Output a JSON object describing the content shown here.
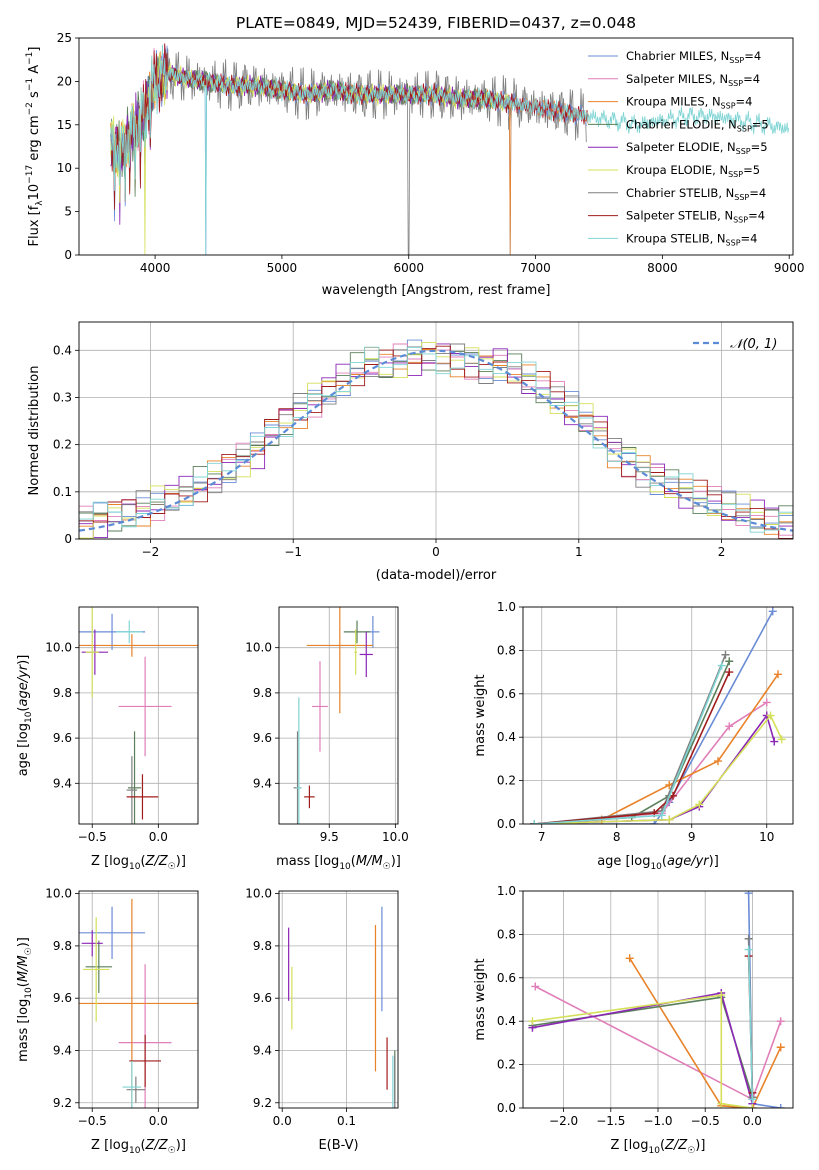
{
  "chart_data": [
    {
      "id": "spectrum",
      "type": "line",
      "title": "PLATE=0849, MJD=52439, FIBERID=0437, z=0.048",
      "xlabel": "wavelength [Angstrom, rest frame]",
      "ylabel": "Flux [f_λ10^-17 erg cm^-2 s^-1 A^-1]",
      "xlim": [
        3400,
        9030
      ],
      "ylim": [
        0,
        25
      ],
      "xticks": [
        4000,
        5000,
        6000,
        7000,
        8000,
        9000
      ],
      "yticks": [
        0,
        5,
        10,
        15,
        20,
        25
      ],
      "grid": false,
      "legend_position": "top-right",
      "continuum": [
        [
          3650,
          13
        ],
        [
          3700,
          12
        ],
        [
          3750,
          12.5
        ],
        [
          3800,
          14
        ],
        [
          3850,
          15
        ],
        [
          3900,
          16
        ],
        [
          3950,
          18
        ],
        [
          4000,
          20
        ],
        [
          4100,
          21
        ],
        [
          4200,
          20.5
        ],
        [
          4400,
          20
        ],
        [
          4600,
          19.5
        ],
        [
          4800,
          19.5
        ],
        [
          5000,
          19
        ],
        [
          5200,
          18.5
        ],
        [
          5400,
          19
        ],
        [
          5600,
          18.5
        ],
        [
          5800,
          18.5
        ],
        [
          6000,
          18.5
        ],
        [
          6200,
          18.5
        ],
        [
          6400,
          18
        ],
        [
          6600,
          18
        ],
        [
          6800,
          17.5
        ],
        [
          7000,
          17
        ],
        [
          7200,
          16.5
        ],
        [
          7400,
          16
        ],
        [
          7600,
          15.5
        ],
        [
          7800,
          15
        ],
        [
          8000,
          15.5
        ],
        [
          8200,
          16
        ],
        [
          8400,
          16
        ],
        [
          8600,
          15.5
        ],
        [
          8800,
          15
        ],
        [
          9000,
          14.5
        ]
      ],
      "series": [
        {
          "name": "Chabrier MILES, N_SSP=4",
          "color": "#6b8cd6",
          "xmax": 7400,
          "dips": [
            4400,
            6800
          ]
        },
        {
          "name": "Salpeter MILES, N_SSP=4",
          "color": "#e07fb9",
          "xmax": 7400,
          "dips": []
        },
        {
          "name": "Kroupa MILES, N_SSP=4",
          "color": "#e8832a",
          "xmax": 7420,
          "dips": [
            6800,
            7430
          ]
        },
        {
          "name": "Chabrier ELODIE, N_SSP=5",
          "color": "#5a7f5a",
          "xmax": 6800,
          "dips": []
        },
        {
          "name": "Salpeter ELODIE, N_SSP=5",
          "color": "#8b26b5",
          "xmax": 6800,
          "dips": []
        },
        {
          "name": "Kroupa ELODIE, N_SSP=5",
          "color": "#d4e05a",
          "xmax": 6800,
          "dips": [
            3920
          ]
        },
        {
          "name": "Chabrier STELIB, N_SSP=4",
          "color": "#7f7f7f",
          "xmax": 7400,
          "dips": [
            6000
          ]
        },
        {
          "name": "Salpeter STELIB, N_SSP=4",
          "color": "#a01c1c",
          "xmax": 7420,
          "dips": []
        },
        {
          "name": "Kroupa STELIB, N_SSP=4",
          "color": "#7fd4d4",
          "xmax": 9000,
          "dips": [
            4400
          ]
        }
      ]
    },
    {
      "id": "residuals",
      "type": "line",
      "xlabel": "(data-model)/error",
      "ylabel": "Normed distribution",
      "xlim": [
        -2.5,
        2.5
      ],
      "ylim": [
        0,
        0.46
      ],
      "xticks": [
        -2,
        -1,
        0,
        1,
        2
      ],
      "yticks": [
        0.0,
        0.1,
        0.2,
        0.3,
        0.4
      ],
      "grid": true,
      "legend_position": "top-right",
      "reference": {
        "name": "𝒩(0, 1)",
        "color": "#5b8bd6"
      },
      "bins": {
        "start": -2.5,
        "width": 0.1,
        "count": 50
      },
      "colors": [
        "#6b8cd6",
        "#e07fb9",
        "#e8832a",
        "#5a7f5a",
        "#8b26b5",
        "#d4e05a",
        "#7f7f7f",
        "#a01c1c",
        "#7fd4d4"
      ]
    },
    {
      "id": "z-age",
      "type": "scatter",
      "xlabel": "Z [log10(Z/Z☉)]",
      "ylabel": "age  [log10(age/yr)]",
      "xlim": [
        -0.6,
        0.3
      ],
      "ylim": [
        9.22,
        10.18
      ],
      "xticks": [
        -0.5,
        0.0
      ],
      "xticklabels": [
        "−0.5",
        "0.0"
      ],
      "yticks": [
        9.4,
        9.6,
        9.8,
        10.0
      ],
      "yticklabels": [
        "9.4",
        "9.6",
        "9.8",
        "10.0"
      ],
      "grid": true,
      "points": [
        {
          "x": -0.35,
          "y": 10.07,
          "xerr": 0.25,
          "yerr": 0.08,
          "color": "#6b8cd6"
        },
        {
          "x": -0.1,
          "y": 9.74,
          "xerr": 0.2,
          "yerr": 0.22,
          "color": "#e07fb9"
        },
        {
          "x": -0.2,
          "y": 10.01,
          "xerr": 0.5,
          "yerr": 0.05,
          "color": "#e8832a"
        },
        {
          "x": -0.18,
          "y": 9.38,
          "xerr": 0.05,
          "yerr": 0.25,
          "color": "#5a7f5a"
        },
        {
          "x": -0.48,
          "y": 9.98,
          "xerr": 0.1,
          "yerr": 0.1,
          "color": "#8b26b5"
        },
        {
          "x": -0.5,
          "y": 9.98,
          "xerr": 0.05,
          "yerr": 0.2,
          "color": "#d4e05a"
        },
        {
          "x": -0.2,
          "y": 9.37,
          "xerr": 0.04,
          "yerr": 0.15,
          "color": "#7f7f7f"
        },
        {
          "x": -0.12,
          "y": 9.34,
          "xerr": 0.12,
          "yerr": 0.1,
          "color": "#a01c1c"
        },
        {
          "x": -0.22,
          "y": 10.07,
          "xerr": 0.1,
          "yerr": 0.05,
          "color": "#7fd4d4"
        }
      ]
    },
    {
      "id": "mass-age",
      "type": "scatter",
      "xlabel": "mass [log10(M/M☉)]",
      "ylabel": "",
      "xlim": [
        9.12,
        10.02
      ],
      "ylim": [
        9.22,
        10.18
      ],
      "xticks": [
        9.5,
        10.0
      ],
      "xticklabels": [
        "9.5",
        "10.0"
      ],
      "yticks": [
        9.4,
        9.6,
        9.8,
        10.0
      ],
      "yticklabels": [
        "9.4",
        "9.6",
        "9.8",
        "10.0"
      ],
      "grid": true,
      "points": [
        {
          "x": 9.83,
          "y": 10.07,
          "xerr": 0.05,
          "yerr": 0.07,
          "color": "#6b8cd6"
        },
        {
          "x": 9.43,
          "y": 9.74,
          "xerr": 0.06,
          "yerr": 0.2,
          "color": "#e07fb9"
        },
        {
          "x": 9.58,
          "y": 10.01,
          "xerr": 0.25,
          "yerr": 0.3,
          "color": "#e8832a"
        },
        {
          "x": 9.71,
          "y": 10.07,
          "xerr": 0.1,
          "yerr": 0.05,
          "color": "#5a7f5a"
        },
        {
          "x": 9.78,
          "y": 9.97,
          "xerr": 0.05,
          "yerr": 0.1,
          "color": "#8b26b5"
        },
        {
          "x": 9.7,
          "y": 9.98,
          "xerr": 0.01,
          "yerr": 0.1,
          "color": "#d4e05a"
        },
        {
          "x": 9.26,
          "y": 9.38,
          "xerr": 0.03,
          "yerr": 0.25,
          "color": "#7f7f7f"
        },
        {
          "x": 9.35,
          "y": 9.34,
          "xerr": 0.04,
          "yerr": 0.05,
          "color": "#a01c1c"
        },
        {
          "x": 9.27,
          "y": 9.38,
          "xerr": 0.02,
          "yerr": 0.4,
          "color": "#7fd4d4"
        }
      ]
    },
    {
      "id": "age-weight",
      "type": "line",
      "xlabel": "age  [log10(age/yr)]",
      "ylabel": "mass weight",
      "xlim": [
        6.75,
        10.35
      ],
      "ylim": [
        0,
        1.0
      ],
      "xticks": [
        7,
        8,
        9,
        10
      ],
      "xticklabels": [
        "7",
        "8",
        "9",
        "10"
      ],
      "yticks": [
        0,
        0.2,
        0.4,
        0.6,
        0.8,
        1.0
      ],
      "yticklabels": [
        "0.0",
        "0.2",
        "0.4",
        "0.6",
        "0.8",
        "1.0"
      ],
      "grid": true,
      "series": [
        {
          "color": "#6b8cd6",
          "points": [
            [
              6.9,
              0.0
            ],
            [
              8.5,
              0.0
            ],
            [
              8.7,
              0.1
            ],
            [
              10.08,
              0.98
            ]
          ]
        },
        {
          "color": "#e07fb9",
          "points": [
            [
              6.9,
              0.0
            ],
            [
              8.6,
              0.05
            ],
            [
              9.5,
              0.45
            ],
            [
              10.0,
              0.56
            ]
          ]
        },
        {
          "color": "#e8832a",
          "points": [
            [
              6.9,
              0.0
            ],
            [
              7.8,
              0.02
            ],
            [
              8.7,
              0.18
            ],
            [
              9.35,
              0.29
            ],
            [
              10.15,
              0.69
            ]
          ]
        },
        {
          "color": "#5a7f5a",
          "points": [
            [
              6.9,
              0.0
            ],
            [
              8.2,
              0.03
            ],
            [
              8.7,
              0.13
            ],
            [
              9.5,
              0.75
            ]
          ]
        },
        {
          "color": "#8b26b5",
          "points": [
            [
              6.9,
              0.0
            ],
            [
              8.7,
              0.02
            ],
            [
              9.1,
              0.08
            ],
            [
              10.0,
              0.5
            ],
            [
              10.1,
              0.38
            ]
          ]
        },
        {
          "color": "#d4e05a",
          "points": [
            [
              6.9,
              0.0
            ],
            [
              8.7,
              0.02
            ],
            [
              9.1,
              0.09
            ],
            [
              10.05,
              0.5
            ],
            [
              10.2,
              0.39
            ]
          ]
        },
        {
          "color": "#7f7f7f",
          "points": [
            [
              6.9,
              0.0
            ],
            [
              8.6,
              0.06
            ],
            [
              9.45,
              0.78
            ]
          ]
        },
        {
          "color": "#a01c1c",
          "points": [
            [
              6.9,
              0.0
            ],
            [
              8.5,
              0.05
            ],
            [
              8.75,
              0.13
            ],
            [
              9.5,
              0.7
            ]
          ]
        },
        {
          "color": "#7fd4d4",
          "points": [
            [
              6.9,
              0.0
            ],
            [
              8.6,
              0.04
            ],
            [
              9.4,
              0.73
            ]
          ]
        }
      ]
    },
    {
      "id": "z-mass",
      "type": "scatter",
      "xlabel": "Z [log10(Z/Z☉)]",
      "ylabel": "mass [log10(M/M☉)]",
      "xlim": [
        -0.6,
        0.3
      ],
      "ylim": [
        9.18,
        10.01
      ],
      "xticks": [
        -0.5,
        0.0
      ],
      "xticklabels": [
        "−0.5",
        "0.0"
      ],
      "yticks": [
        9.2,
        9.4,
        9.6,
        9.8,
        10.0
      ],
      "yticklabels": [
        "9.2",
        "9.4",
        "9.6",
        "9.8",
        "10.0"
      ],
      "grid": true,
      "points": [
        {
          "x": -0.35,
          "y": 9.85,
          "xerr": 0.25,
          "yerr": 0.1,
          "color": "#6b8cd6"
        },
        {
          "x": -0.1,
          "y": 9.43,
          "xerr": 0.2,
          "yerr": 0.3,
          "color": "#e07fb9"
        },
        {
          "x": -0.2,
          "y": 9.58,
          "xerr": 0.5,
          "yerr": 0.4,
          "color": "#e8832a"
        },
        {
          "x": -0.45,
          "y": 9.72,
          "xerr": 0.1,
          "yerr": 0.1,
          "color": "#5a7f5a"
        },
        {
          "x": -0.5,
          "y": 9.81,
          "xerr": 0.08,
          "yerr": 0.05,
          "color": "#8b26b5"
        },
        {
          "x": -0.47,
          "y": 9.71,
          "xerr": 0.1,
          "yerr": 0.2,
          "color": "#d4e05a"
        },
        {
          "x": -0.17,
          "y": 9.25,
          "xerr": 0.07,
          "yerr": 0.05,
          "color": "#7f7f7f"
        },
        {
          "x": -0.1,
          "y": 9.36,
          "xerr": 0.12,
          "yerr": 0.1,
          "color": "#a01c1c"
        },
        {
          "x": -0.2,
          "y": 9.26,
          "xerr": 0.07,
          "yerr": 0.1,
          "color": "#7fd4d4"
        }
      ]
    },
    {
      "id": "ebv-mass",
      "type": "scatter",
      "xlabel": "E(B-V)",
      "ylabel": "",
      "xlim": [
        -0.005,
        0.18
      ],
      "ylim": [
        9.18,
        10.01
      ],
      "xticks": [
        0.0,
        0.1
      ],
      "xticklabels": [
        "0.0",
        "0.1"
      ],
      "yticks": [
        9.2,
        9.4,
        9.6,
        9.8,
        10.0
      ],
      "yticklabels": [
        "9.2",
        "9.4",
        "9.6",
        "9.8",
        "10.0"
      ],
      "grid": true,
      "points": [
        {
          "x": 0.155,
          "y": 9.75,
          "xerr": 0,
          "yerr": 0.2,
          "color": "#6b8cd6"
        },
        {
          "x": 0.175,
          "y": 9.28,
          "xerr": 0,
          "yerr": 0.1,
          "color": "#e07fb9"
        },
        {
          "x": 0.145,
          "y": 9.6,
          "xerr": 0,
          "yerr": 0.28,
          "color": "#e8832a"
        },
        {
          "x": 0.175,
          "y": 9.3,
          "xerr": 0,
          "yerr": 0.1,
          "color": "#5a7f5a"
        },
        {
          "x": 0.01,
          "y": 9.73,
          "xerr": 0,
          "yerr": 0.14,
          "color": "#8b26b5"
        },
        {
          "x": 0.015,
          "y": 9.6,
          "xerr": 0,
          "yerr": 0.12,
          "color": "#d4e05a"
        },
        {
          "x": 0.175,
          "y": 9.28,
          "xerr": 0,
          "yerr": 0.1,
          "color": "#7f7f7f"
        },
        {
          "x": 0.163,
          "y": 9.35,
          "xerr": 0,
          "yerr": 0.1,
          "color": "#a01c1c"
        },
        {
          "x": 0.172,
          "y": 9.28,
          "xerr": 0,
          "yerr": 0.1,
          "color": "#7fd4d4"
        }
      ]
    },
    {
      "id": "z-weight",
      "type": "line",
      "xlabel": "Z [log10(Z/Z☉)]",
      "ylabel": "mass weight",
      "xlim": [
        -2.43,
        0.43
      ],
      "ylim": [
        0,
        1.0
      ],
      "xticks": [
        -2.0,
        -1.5,
        -1.0,
        -0.5,
        0.0
      ],
      "xticklabels": [
        "−2.0",
        "−1.5",
        "−1.0",
        "−0.5",
        "0.0"
      ],
      "yticks": [
        0,
        0.2,
        0.4,
        0.6,
        0.8,
        1.0
      ],
      "yticklabels": [
        "0.0",
        "0.2",
        "0.4",
        "0.6",
        "0.8",
        "1.0"
      ],
      "grid": true,
      "series": [
        {
          "color": "#6b8cd6",
          "points": [
            [
              -0.04,
              0.99
            ],
            [
              0.0,
              0.02
            ],
            [
              0.3,
              0.0
            ]
          ]
        },
        {
          "color": "#e07fb9",
          "points": [
            [
              -2.3,
              0.56
            ],
            [
              0.0,
              0.04
            ],
            [
              0.3,
              0.4
            ]
          ]
        },
        {
          "color": "#e8832a",
          "points": [
            [
              -1.3,
              0.69
            ],
            [
              -0.33,
              0.01
            ],
            [
              0.0,
              0.0
            ],
            [
              0.3,
              0.28
            ]
          ]
        },
        {
          "color": "#5a7f5a",
          "points": [
            [
              -2.33,
              0.38
            ],
            [
              -0.33,
              0.51
            ],
            [
              0.0,
              0.05
            ]
          ]
        },
        {
          "color": "#8b26b5",
          "points": [
            [
              -2.33,
              0.37
            ],
            [
              -0.33,
              0.53
            ],
            [
              0.0,
              0.02
            ]
          ]
        },
        {
          "color": "#d4e05a",
          "points": [
            [
              -2.33,
              0.4
            ],
            [
              -0.33,
              0.52
            ],
            [
              -0.33,
              0.02
            ],
            [
              0.0,
              0.0
            ]
          ]
        },
        {
          "color": "#7f7f7f",
          "points": [
            [
              -0.04,
              0.78
            ],
            [
              0.0,
              0.05
            ]
          ]
        },
        {
          "color": "#a01c1c",
          "points": [
            [
              -0.04,
              0.7
            ],
            [
              0.0,
              0.07
            ]
          ]
        },
        {
          "color": "#7fd4d4",
          "points": [
            [
              -0.04,
              0.73
            ],
            [
              0.0,
              0.04
            ]
          ]
        }
      ]
    }
  ]
}
